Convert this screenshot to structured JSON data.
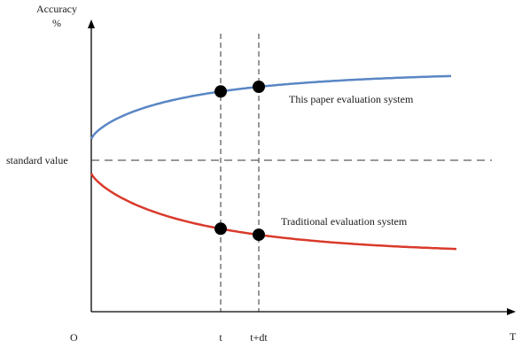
{
  "chart_data": {
    "type": "line",
    "title": "",
    "ylabel_line1": "Accuracy",
    "ylabel_line2": "%",
    "xlabel": "T",
    "origin_label": "O",
    "reference_line": {
      "label": "standard value",
      "value": 0
    },
    "markers": [
      {
        "label": "t",
        "x": 1
      },
      {
        "label": "t+dt",
        "x": 1.3
      }
    ],
    "series": [
      {
        "name": "This paper evaluation system",
        "color": "#5a86c5",
        "direction": "up"
      },
      {
        "name": "Traditional evaluation system",
        "color": "#d93a2b",
        "direction": "down"
      }
    ],
    "marker_color": "#000000"
  }
}
